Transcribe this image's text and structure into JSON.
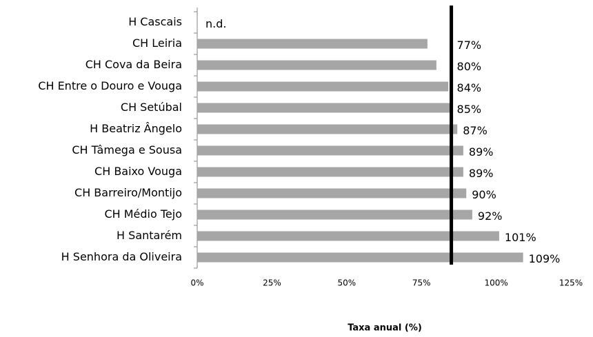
{
  "chart_data": {
    "type": "bar",
    "orientation": "horizontal",
    "categories": [
      "H Cascais",
      "CH Leiria",
      "CH Cova da Beira",
      "CH Entre o Douro e Vouga",
      "CH Setúbal",
      "H Beatriz Ângelo",
      "CH Tâmega e Sousa",
      "CH Baixo Vouga",
      "CH Barreiro/Montijo",
      "CH Médio Tejo",
      "H Santarém",
      "H Senhora da Oliveira"
    ],
    "values": [
      null,
      77,
      80,
      84,
      85,
      87,
      89,
      89,
      90,
      92,
      101,
      109
    ],
    "value_labels": [
      "n.d.",
      "77%",
      "80%",
      "84%",
      "85%",
      "87%",
      "89%",
      "89%",
      "90%",
      "92%",
      "101%",
      "109%"
    ],
    "color": "#a6a6a6",
    "xlim": [
      0,
      125
    ],
    "xticks": [
      {
        "value": 0,
        "label": "0%"
      },
      {
        "value": 25,
        "label": "25%"
      },
      {
        "value": 50,
        "label": "50%"
      },
      {
        "value": 75,
        "label": "75%"
      },
      {
        "value": 100,
        "label": "100%"
      },
      {
        "value": 125,
        "label": "125%"
      }
    ],
    "x_label": "Taxa anual (%)",
    "reference_value": 85,
    "reference_color": "#000000"
  }
}
